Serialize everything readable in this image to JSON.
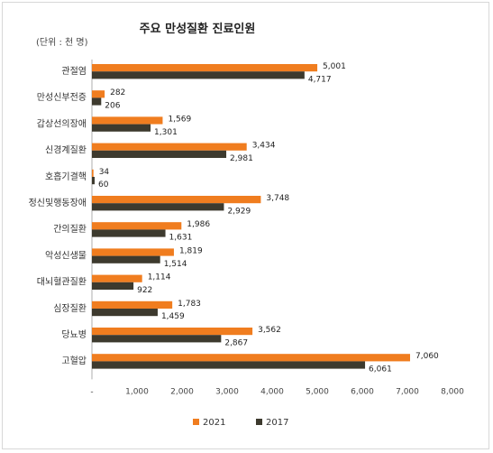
{
  "chart_data": {
    "type": "bar",
    "orientation": "horizontal",
    "title": "주요 만성질환 진료인원",
    "unit_label": "(단위 : 천 명)",
    "categories": [
      "관절염",
      "만성신부전증",
      "갑상선의장애",
      "신경계질환",
      "호흡기결핵",
      "정신및행동장애",
      "간의질환",
      "악성신생물",
      "대뇌혈관질환",
      "심장질환",
      "당뇨병",
      "고혈압"
    ],
    "series": [
      {
        "name": "2021",
        "color": "#f07d1f",
        "values": [
          5001,
          282,
          1569,
          3434,
          34,
          3748,
          1986,
          1819,
          1114,
          1783,
          3562,
          7060
        ]
      },
      {
        "name": "2017",
        "color": "#3d3a2e",
        "values": [
          4717,
          206,
          1301,
          2981,
          60,
          2929,
          1631,
          1514,
          922,
          1459,
          2867,
          6061
        ]
      }
    ],
    "data_labels": [
      [
        "5,001",
        "282",
        "1,569",
        "3,434",
        "34",
        "3,748",
        "1,986",
        "1,819",
        "1,114",
        "1,783",
        "3,562",
        "7,060"
      ],
      [
        "4,717",
        "206",
        "1,301",
        "2,981",
        "60",
        "2,929",
        "1,631",
        "1,514",
        "922",
        "1,459",
        "2,867",
        "6,061"
      ]
    ],
    "xlim": [
      0,
      8000
    ],
    "xticks": [
      0,
      1000,
      2000,
      3000,
      4000,
      5000,
      6000,
      7000,
      8000
    ],
    "xtick_labels": [
      "-",
      "1,000",
      "2,000",
      "3,000",
      "4,000",
      "5,000",
      "6,000",
      "7,000",
      "8,000"
    ],
    "grid": false,
    "legend_position": "bottom"
  }
}
